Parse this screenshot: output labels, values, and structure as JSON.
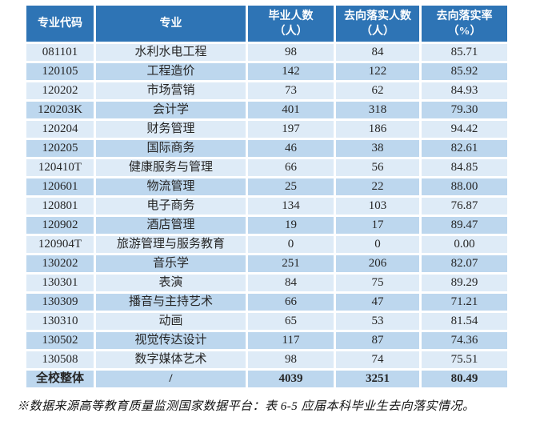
{
  "table": {
    "headers": [
      {
        "line1": "专业代码",
        "line2": ""
      },
      {
        "line1": "专业",
        "line2": ""
      },
      {
        "line1": "毕业人数",
        "line2": "（人）"
      },
      {
        "line1": "去向落实人数",
        "line2": "（人）"
      },
      {
        "line1": "去向落实率",
        "line2": "（%）"
      }
    ],
    "rows": [
      {
        "code": "081101",
        "major": "水利水电工程",
        "graduates": "98",
        "placed": "84",
        "rate": "85.71"
      },
      {
        "code": "120105",
        "major": "工程造价",
        "graduates": "142",
        "placed": "122",
        "rate": "85.92"
      },
      {
        "code": "120202",
        "major": "市场营销",
        "graduates": "73",
        "placed": "62",
        "rate": "84.93"
      },
      {
        "code": "120203K",
        "major": "会计学",
        "graduates": "401",
        "placed": "318",
        "rate": "79.30"
      },
      {
        "code": "120204",
        "major": "财务管理",
        "graduates": "197",
        "placed": "186",
        "rate": "94.42"
      },
      {
        "code": "120205",
        "major": "国际商务",
        "graduates": "46",
        "placed": "38",
        "rate": "82.61"
      },
      {
        "code": "120410T",
        "major": "健康服务与管理",
        "graduates": "66",
        "placed": "56",
        "rate": "84.85"
      },
      {
        "code": "120601",
        "major": "物流管理",
        "graduates": "25",
        "placed": "22",
        "rate": "88.00"
      },
      {
        "code": "120801",
        "major": "电子商务",
        "graduates": "134",
        "placed": "103",
        "rate": "76.87"
      },
      {
        "code": "120902",
        "major": "酒店管理",
        "graduates": "19",
        "placed": "17",
        "rate": "89.47"
      },
      {
        "code": "120904T",
        "major": "旅游管理与服务教育",
        "graduates": "0",
        "placed": "0",
        "rate": "0.00"
      },
      {
        "code": "130202",
        "major": "音乐学",
        "graduates": "251",
        "placed": "206",
        "rate": "82.07"
      },
      {
        "code": "130301",
        "major": "表演",
        "graduates": "84",
        "placed": "75",
        "rate": "89.29"
      },
      {
        "code": "130309",
        "major": "播音与主持艺术",
        "graduates": "66",
        "placed": "47",
        "rate": "71.21"
      },
      {
        "code": "130310",
        "major": "动画",
        "graduates": "65",
        "placed": "53",
        "rate": "81.54"
      },
      {
        "code": "130502",
        "major": "视觉传达设计",
        "graduates": "117",
        "placed": "87",
        "rate": "74.36"
      },
      {
        "code": "130508",
        "major": "数字媒体艺术",
        "graduates": "98",
        "placed": "74",
        "rate": "75.51"
      },
      {
        "code": "全校整体",
        "major": "/",
        "graduates": "4039",
        "placed": "3251",
        "rate": "80.49",
        "is_total": true
      }
    ]
  },
  "footnote": "※数据来源高等教育质量监测国家数据平台：表 6-5 应届本科毕业生去向落实情况。",
  "colors": {
    "header_bg": "#2E74B5",
    "header_text": "#FFFFFF",
    "row_light": "#DEEBF7",
    "row_dark": "#BDD7EE",
    "cell_text": "#262626"
  }
}
